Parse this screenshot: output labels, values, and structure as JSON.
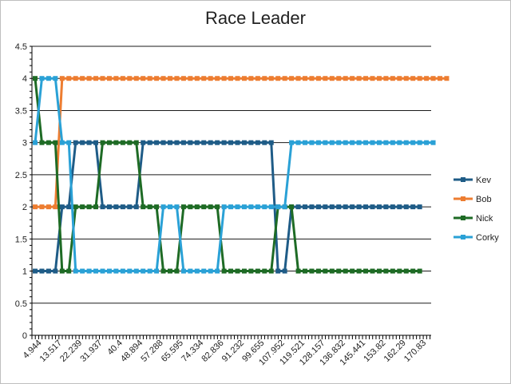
{
  "chart_data": {
    "type": "line",
    "title": "Race Leader",
    "xlabel": "",
    "ylabel": "",
    "ylim": [
      0,
      4.5
    ],
    "ytick_step": 0.5,
    "grid": true,
    "legend_position": "right",
    "x_tick_labels": [
      "4.944",
      "13.517",
      "22.239",
      "31.937",
      "40.4",
      "48.894",
      "57.288",
      "65.595",
      "74.334",
      "82.836",
      "91.232",
      "99.655",
      "107.952",
      "119.521",
      "128.157",
      "136.832",
      "145.441",
      "153.82",
      "162.29",
      "170.83"
    ],
    "series": [
      {
        "name": "Kev",
        "color": "#1f5c87",
        "values": [
          1,
          1,
          1,
          1,
          2,
          2,
          3,
          3,
          3,
          3,
          2,
          2,
          2,
          2,
          2,
          2,
          3,
          3,
          3,
          3,
          3,
          3,
          3,
          3,
          3,
          3,
          3,
          3,
          3,
          3,
          3,
          3,
          3,
          3,
          3,
          3,
          1,
          1,
          2,
          2,
          2,
          2,
          2,
          2,
          2,
          2,
          2,
          2,
          2,
          2,
          2,
          2,
          2,
          2,
          2,
          2,
          2,
          2
        ]
      },
      {
        "name": "Bob",
        "color": "#ed7d31",
        "values": [
          2,
          2,
          2,
          2,
          4,
          4,
          4,
          4,
          4,
          4,
          4,
          4,
          4,
          4,
          4,
          4,
          4,
          4,
          4,
          4,
          4,
          4,
          4,
          4,
          4,
          4,
          4,
          4,
          4,
          4,
          4,
          4,
          4,
          4,
          4,
          4,
          4,
          4,
          4,
          4,
          4,
          4,
          4,
          4,
          4,
          4,
          4,
          4,
          4,
          4,
          4,
          4,
          4,
          4,
          4,
          4,
          4,
          4,
          4,
          4,
          4,
          4
        ]
      },
      {
        "name": "Nick",
        "color": "#1e6b25",
        "values": [
          4,
          3,
          3,
          3,
          1,
          1,
          2,
          2,
          2,
          2,
          3,
          3,
          3,
          3,
          3,
          3,
          2,
          2,
          2,
          1,
          1,
          1,
          2,
          2,
          2,
          2,
          2,
          2,
          1,
          1,
          1,
          1,
          1,
          1,
          1,
          1,
          2,
          2,
          2,
          1,
          1,
          1,
          1,
          1,
          1,
          1,
          1,
          1,
          1,
          1,
          1,
          1,
          1,
          1,
          1,
          1,
          1,
          1
        ]
      },
      {
        "name": "Corky",
        "color": "#2aa1d6",
        "values": [
          3,
          4,
          4,
          4,
          3,
          3,
          1,
          1,
          1,
          1,
          1,
          1,
          1,
          1,
          1,
          1,
          1,
          1,
          1,
          2,
          2,
          2,
          1,
          1,
          1,
          1,
          1,
          1,
          2,
          2,
          2,
          2,
          2,
          2,
          2,
          2,
          2,
          2,
          3,
          3,
          3,
          3,
          3,
          3,
          3,
          3,
          3,
          3,
          3,
          3,
          3,
          3,
          3,
          3,
          3,
          3,
          3,
          3,
          3,
          3
        ]
      }
    ]
  }
}
